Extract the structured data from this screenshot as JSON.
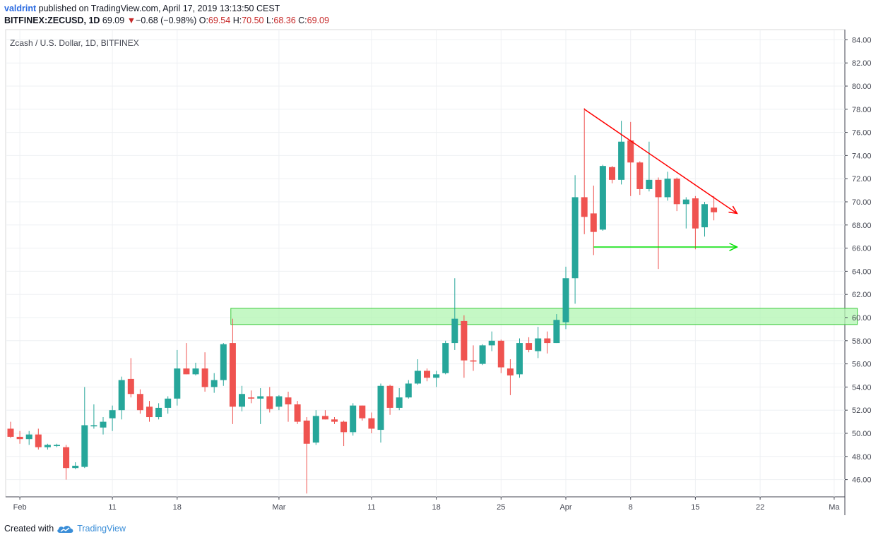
{
  "header": {
    "user": "valdrint",
    "published": " published on TradingView.com, April 17, 2019 13:13:50 CEST",
    "symbol": "BITFINEX:ZECUSD, 1D",
    "last": "69.09",
    "arrow": "▼",
    "change": "−0.68 (−0.98%)",
    "o_label": "O:",
    "o": "69.54",
    "h_label": "H:",
    "h": "70.50",
    "l_label": "L:",
    "l": "68.36",
    "c_label": "C:",
    "c": "69.09"
  },
  "footer": {
    "created": "Created with",
    "brand": "TradingView"
  },
  "colors": {
    "up": "#26a69a",
    "down": "#ef5350",
    "resistance": "#ff0000",
    "support": "#00e000",
    "zone_fill": "#b2f5b2",
    "zone_border": "#39c939"
  },
  "chart_data": {
    "type": "candlestick",
    "title": "Zcash / U.S. Dollar, 1D, BITFINEX",
    "ylim": [
      44.5,
      85
    ],
    "y_ticks": [
      "84.00",
      "82.00",
      "80.00",
      "78.00",
      "76.00",
      "74.00",
      "72.00",
      "70.00",
      "68.00",
      "66.00",
      "64.00",
      "62.00",
      "60.00",
      "58.00",
      "56.00",
      "54.00",
      "52.00",
      "50.00",
      "48.00",
      "46.00"
    ],
    "x_ticks": [
      {
        "label": "Feb",
        "index": 1
      },
      {
        "label": "11",
        "index": 11
      },
      {
        "label": "18",
        "index": 18
      },
      {
        "label": "Mar",
        "index": 29
      },
      {
        "label": "11",
        "index": 39
      },
      {
        "label": "18",
        "index": 46
      },
      {
        "label": "25",
        "index": 53
      },
      {
        "label": "Apr",
        "index": 60
      },
      {
        "label": "8",
        "index": 67
      },
      {
        "label": "15",
        "index": 74
      },
      {
        "label": "22",
        "index": 81
      },
      {
        "label": "Ma",
        "index": 89
      }
    ],
    "grid": true,
    "candles": [
      {
        "o": 50.4,
        "h": 51.0,
        "l": 49.6,
        "c": 49.7
      },
      {
        "o": 49.7,
        "h": 50.2,
        "l": 49.1,
        "c": 49.5
      },
      {
        "o": 49.5,
        "h": 50.2,
        "l": 49.0,
        "c": 49.9
      },
      {
        "o": 49.9,
        "h": 50.4,
        "l": 48.6,
        "c": 48.8
      },
      {
        "o": 48.8,
        "h": 49.1,
        "l": 48.6,
        "c": 49.0
      },
      {
        "o": 48.9,
        "h": 49.1,
        "l": 48.8,
        "c": 49.0
      },
      {
        "o": 48.8,
        "h": 49.0,
        "l": 46.0,
        "c": 47.0
      },
      {
        "o": 47.0,
        "h": 47.5,
        "l": 46.9,
        "c": 47.2
      },
      {
        "o": 47.1,
        "h": 54.0,
        "l": 47.0,
        "c": 50.7
      },
      {
        "o": 50.6,
        "h": 52.5,
        "l": 50.4,
        "c": 50.7
      },
      {
        "o": 50.5,
        "h": 51.4,
        "l": 49.9,
        "c": 51.0
      },
      {
        "o": 51.3,
        "h": 52.4,
        "l": 50.2,
        "c": 52.0
      },
      {
        "o": 52.0,
        "h": 54.9,
        "l": 51.2,
        "c": 54.6
      },
      {
        "o": 54.7,
        "h": 56.5,
        "l": 53.1,
        "c": 53.4
      },
      {
        "o": 53.4,
        "h": 53.8,
        "l": 51.7,
        "c": 52.0
      },
      {
        "o": 52.3,
        "h": 52.8,
        "l": 51.0,
        "c": 51.4
      },
      {
        "o": 51.4,
        "h": 52.6,
        "l": 51.2,
        "c": 52.2
      },
      {
        "o": 52.2,
        "h": 53.2,
        "l": 51.7,
        "c": 53.0
      },
      {
        "o": 53.0,
        "h": 57.2,
        "l": 52.4,
        "c": 55.6
      },
      {
        "o": 55.6,
        "h": 57.8,
        "l": 55.1,
        "c": 55.1
      },
      {
        "o": 55.1,
        "h": 56.1,
        "l": 55.0,
        "c": 55.6
      },
      {
        "o": 55.6,
        "h": 57.0,
        "l": 53.6,
        "c": 54.0
      },
      {
        "o": 54.0,
        "h": 55.2,
        "l": 53.5,
        "c": 54.6
      },
      {
        "o": 54.6,
        "h": 57.8,
        "l": 54.1,
        "c": 57.7
      },
      {
        "o": 57.8,
        "h": 59.9,
        "l": 50.8,
        "c": 52.3
      },
      {
        "o": 52.3,
        "h": 54.1,
        "l": 51.9,
        "c": 53.4
      },
      {
        "o": 53.1,
        "h": 53.7,
        "l": 52.6,
        "c": 53.0
      },
      {
        "o": 53.0,
        "h": 53.9,
        "l": 50.8,
        "c": 53.2
      },
      {
        "o": 53.2,
        "h": 54.0,
        "l": 51.8,
        "c": 52.1
      },
      {
        "o": 52.3,
        "h": 53.3,
        "l": 52.0,
        "c": 53.2
      },
      {
        "o": 53.1,
        "h": 53.6,
        "l": 51.0,
        "c": 52.5
      },
      {
        "o": 52.5,
        "h": 52.8,
        "l": 50.8,
        "c": 51.0
      },
      {
        "o": 51.1,
        "h": 51.4,
        "l": 44.8,
        "c": 49.1
      },
      {
        "o": 49.2,
        "h": 52.0,
        "l": 49.0,
        "c": 51.5
      },
      {
        "o": 51.5,
        "h": 52.0,
        "l": 51.2,
        "c": 51.2
      },
      {
        "o": 51.2,
        "h": 51.4,
        "l": 50.8,
        "c": 51.0
      },
      {
        "o": 51.0,
        "h": 51.1,
        "l": 48.9,
        "c": 50.1
      },
      {
        "o": 50.1,
        "h": 52.6,
        "l": 49.8,
        "c": 52.4
      },
      {
        "o": 52.4,
        "h": 52.4,
        "l": 51.1,
        "c": 51.3
      },
      {
        "o": 51.3,
        "h": 51.8,
        "l": 50.0,
        "c": 50.4
      },
      {
        "o": 50.3,
        "h": 54.3,
        "l": 49.2,
        "c": 54.1
      },
      {
        "o": 54.1,
        "h": 54.2,
        "l": 51.6,
        "c": 52.2
      },
      {
        "o": 52.2,
        "h": 53.9,
        "l": 52.0,
        "c": 53.1
      },
      {
        "o": 53.1,
        "h": 54.6,
        "l": 53.0,
        "c": 54.3
      },
      {
        "o": 54.3,
        "h": 56.4,
        "l": 54.2,
        "c": 55.4
      },
      {
        "o": 55.4,
        "h": 55.6,
        "l": 54.5,
        "c": 54.8
      },
      {
        "o": 54.8,
        "h": 55.4,
        "l": 54.0,
        "c": 55.1
      },
      {
        "o": 55.2,
        "h": 58.0,
        "l": 55.1,
        "c": 57.8
      },
      {
        "o": 57.8,
        "h": 63.4,
        "l": 57.2,
        "c": 59.9
      },
      {
        "o": 59.7,
        "h": 60.2,
        "l": 54.8,
        "c": 56.3
      },
      {
        "o": 56.3,
        "h": 57.6,
        "l": 55.4,
        "c": 56.2
      },
      {
        "o": 56.0,
        "h": 57.7,
        "l": 55.9,
        "c": 57.6
      },
      {
        "o": 57.6,
        "h": 58.8,
        "l": 57.1,
        "c": 58.0
      },
      {
        "o": 58.0,
        "h": 58.1,
        "l": 55.2,
        "c": 55.7
      },
      {
        "o": 55.6,
        "h": 56.4,
        "l": 53.3,
        "c": 55.0
      },
      {
        "o": 55.1,
        "h": 58.2,
        "l": 54.8,
        "c": 57.8
      },
      {
        "o": 57.8,
        "h": 58.3,
        "l": 57.0,
        "c": 57.2
      },
      {
        "o": 57.1,
        "h": 59.2,
        "l": 56.5,
        "c": 58.2
      },
      {
        "o": 58.2,
        "h": 58.8,
        "l": 56.9,
        "c": 57.8
      },
      {
        "o": 57.8,
        "h": 60.3,
        "l": 57.8,
        "c": 59.8
      },
      {
        "o": 59.6,
        "h": 64.4,
        "l": 59.0,
        "c": 63.4
      },
      {
        "o": 63.4,
        "h": 72.3,
        "l": 61.2,
        "c": 70.4
      },
      {
        "o": 70.4,
        "h": 78.1,
        "l": 67.2,
        "c": 68.7
      },
      {
        "o": 69.0,
        "h": 71.4,
        "l": 65.4,
        "c": 67.4
      },
      {
        "o": 67.6,
        "h": 73.2,
        "l": 67.5,
        "c": 73.1
      },
      {
        "o": 73.0,
        "h": 73.1,
        "l": 71.6,
        "c": 71.9
      },
      {
        "o": 71.9,
        "h": 77.0,
        "l": 71.5,
        "c": 75.2
      },
      {
        "o": 75.3,
        "h": 76.9,
        "l": 70.5,
        "c": 73.4
      },
      {
        "o": 73.4,
        "h": 73.5,
        "l": 70.6,
        "c": 71.1
      },
      {
        "o": 71.1,
        "h": 75.2,
        "l": 70.9,
        "c": 71.9
      },
      {
        "o": 71.9,
        "h": 72.1,
        "l": 64.2,
        "c": 70.4
      },
      {
        "o": 70.4,
        "h": 72.6,
        "l": 70.1,
        "c": 72.0
      },
      {
        "o": 72.0,
        "h": 72.1,
        "l": 69.2,
        "c": 69.8
      },
      {
        "o": 69.8,
        "h": 70.4,
        "l": 67.7,
        "c": 70.2
      },
      {
        "o": 70.3,
        "h": 70.5,
        "l": 65.9,
        "c": 67.7
      },
      {
        "o": 67.8,
        "h": 70.0,
        "l": 67.0,
        "c": 69.8
      },
      {
        "o": 69.5,
        "h": 70.5,
        "l": 68.4,
        "c": 69.1
      }
    ],
    "annotations": {
      "resistance_line": {
        "from": {
          "index": 62,
          "price": 78.0
        },
        "to": {
          "index": 78.5,
          "price": 69.0
        }
      },
      "support_line": {
        "from": {
          "index": 63,
          "price": 66.1
        },
        "to": {
          "index": 78.5,
          "price": 66.1
        }
      },
      "zone": {
        "from_index": 23.8,
        "to_index": 91.5,
        "top": 60.8,
        "bottom": 59.4
      }
    }
  }
}
